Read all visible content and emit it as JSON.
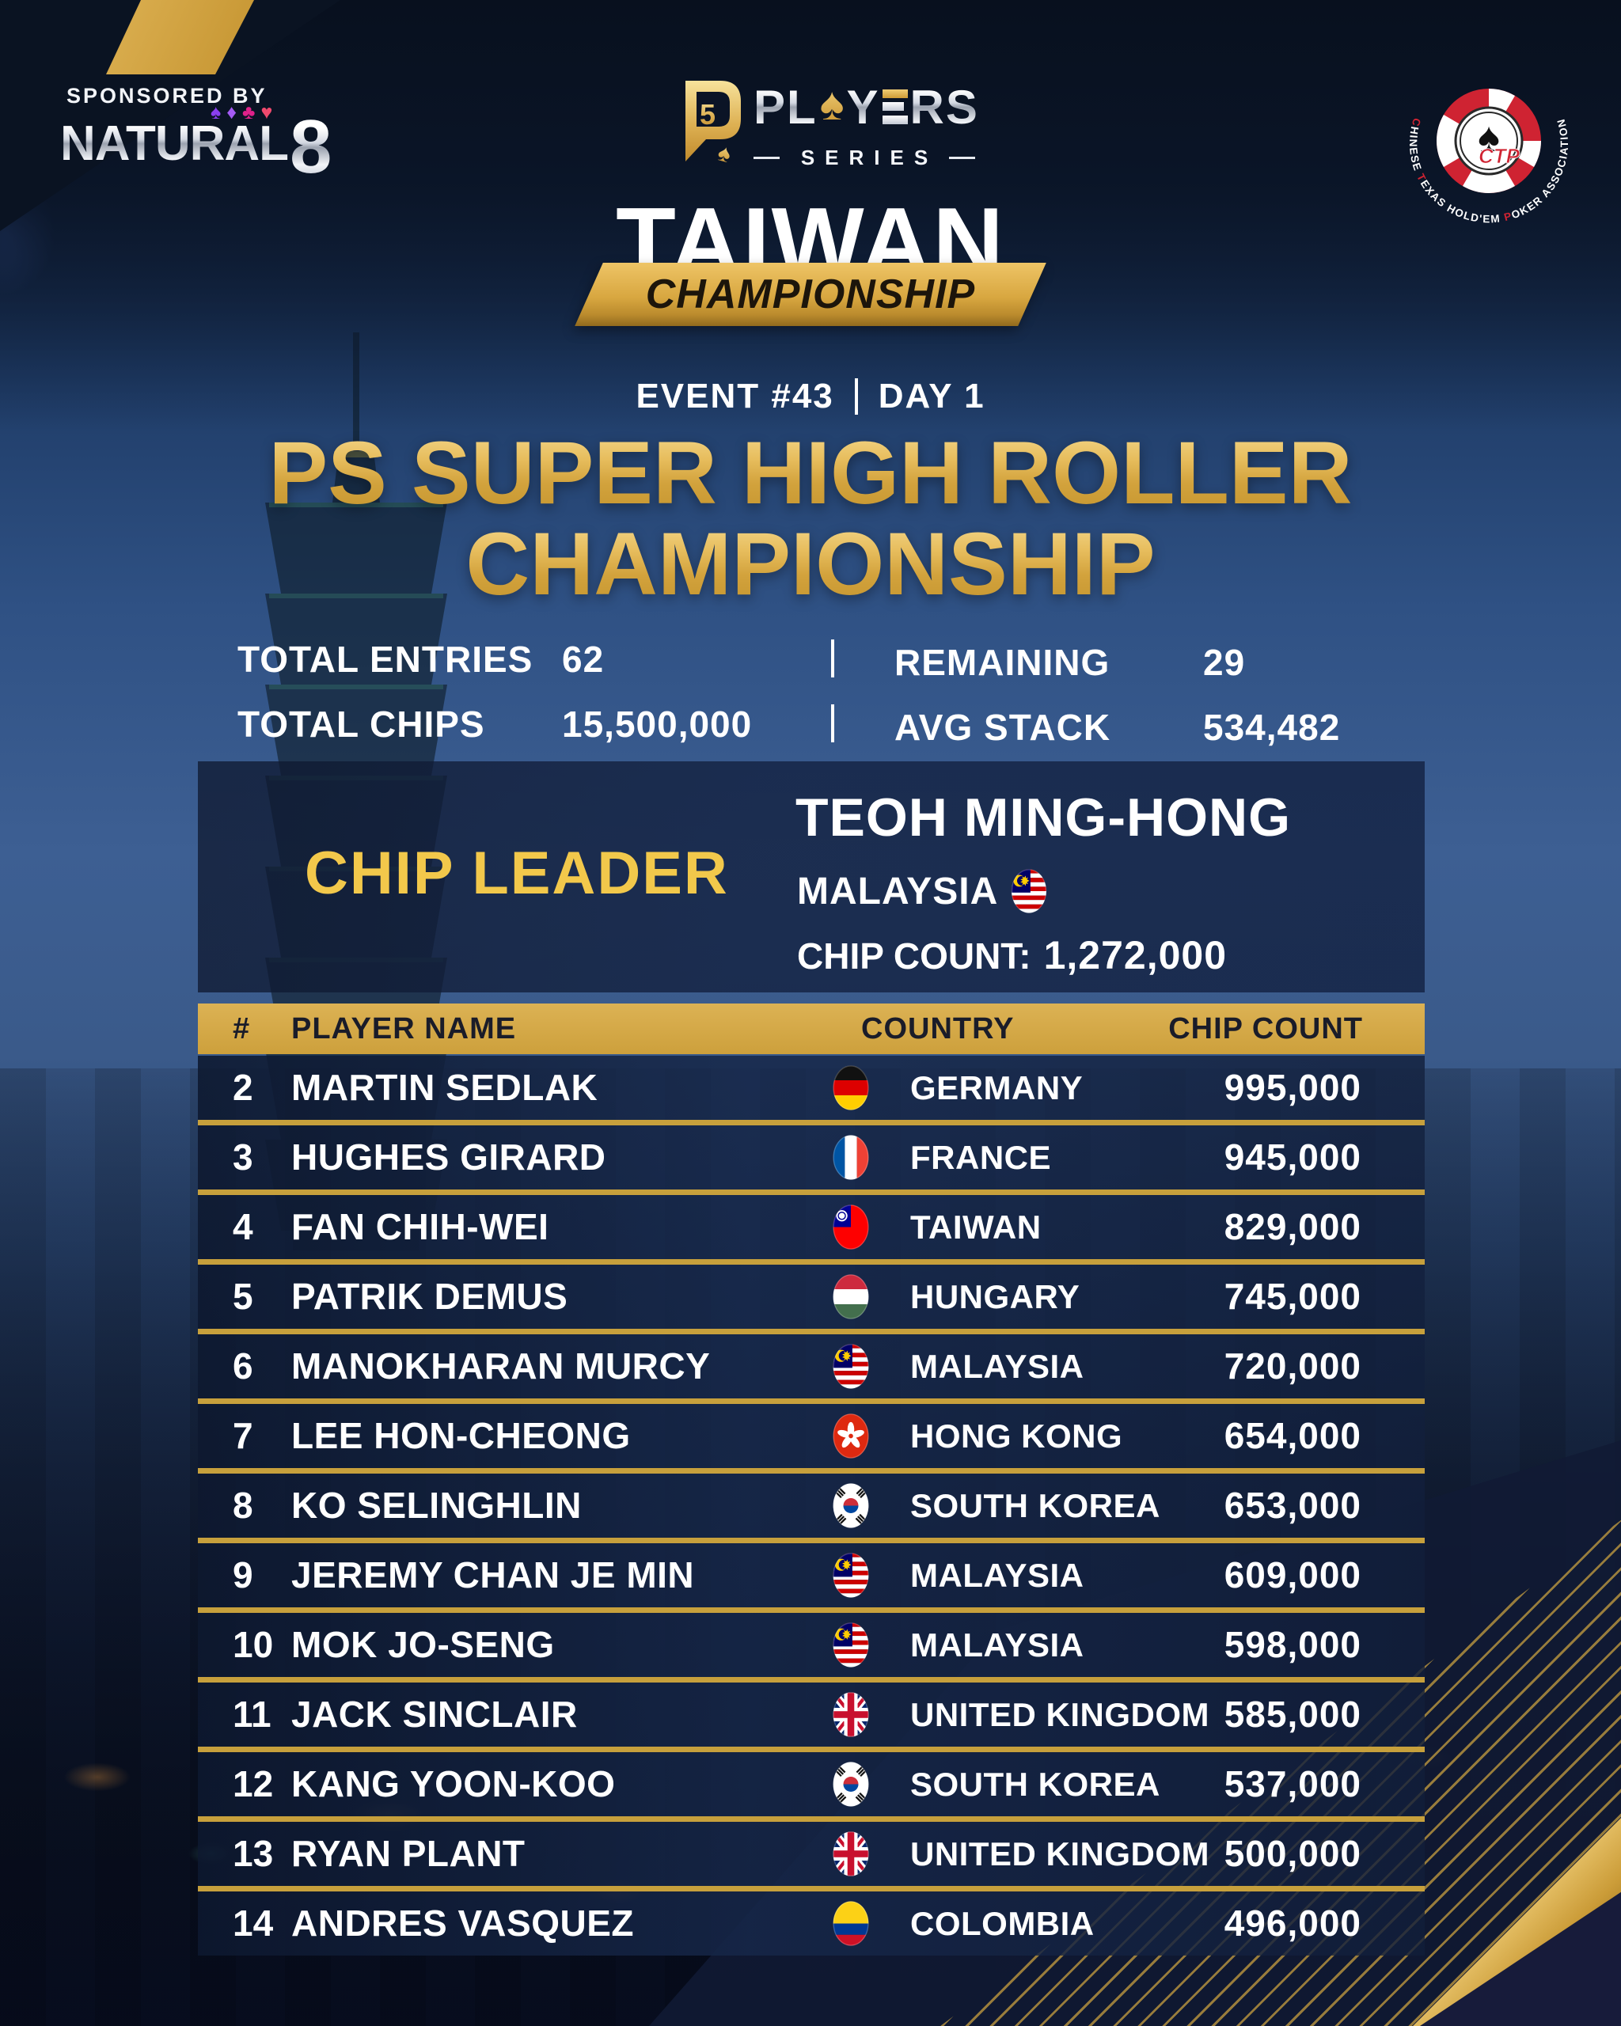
{
  "sponsor": {
    "label": "SPONSORED BY",
    "name_word": "NATURAL",
    "name_eight": "8",
    "suits": [
      "spade",
      "diamond",
      "club",
      "heart"
    ]
  },
  "brand": {
    "monogram": "PS",
    "players_pl": "PL",
    "players_spade": "♠",
    "players_yers_y": "Y",
    "players_yers_rs": "RS",
    "series": "SERIES",
    "location": "TAIWAN",
    "banner": "CHAMPIONSHIP"
  },
  "association": {
    "abbr": "CTP",
    "ring_text": "CHINESE TEXAS HOLD'EM POKER ASSOCIATION",
    "spade_icon": "♠"
  },
  "event": {
    "name": "EVENT #43",
    "day": "DAY 1",
    "title_line1": "PS SUPER HIGH ROLLER",
    "title_line2": "CHAMPIONSHIP"
  },
  "stats": {
    "total_entries_label": "TOTAL ENTRIES",
    "total_entries": "62",
    "total_chips_label": "TOTAL CHIPS",
    "total_chips": "15,500,000",
    "remaining_label": "REMAINING",
    "remaining": "29",
    "avg_stack_label": "AVG STACK",
    "avg_stack": "534,482"
  },
  "chip_leader": {
    "heading": "CHIP LEADER",
    "name": "TEOH MING-HONG",
    "country": "MALAYSIA",
    "flag": "malaysia",
    "chip_count_label": "CHIP COUNT:",
    "chip_count": "1,272,000"
  },
  "table": {
    "headers": {
      "rank": "#",
      "player": "PLAYER NAME",
      "country": "COUNTRY",
      "chips": "CHIP COUNT"
    },
    "rows": [
      {
        "rank": "2",
        "name": "MARTIN SEDLAK",
        "flag": "germany",
        "country": "GERMANY",
        "chips": "995,000"
      },
      {
        "rank": "3",
        "name": "HUGHES GIRARD",
        "flag": "france",
        "country": "FRANCE",
        "chips": "945,000"
      },
      {
        "rank": "4",
        "name": "FAN CHIH-WEI",
        "flag": "taiwan",
        "country": "TAIWAN",
        "chips": "829,000"
      },
      {
        "rank": "5",
        "name": "PATRIK DEMUS",
        "flag": "hungary",
        "country": "HUNGARY",
        "chips": "745,000"
      },
      {
        "rank": "6",
        "name": "MANOKHARAN MURCY",
        "flag": "malaysia",
        "country": "MALAYSIA",
        "chips": "720,000"
      },
      {
        "rank": "7",
        "name": "LEE HON-CHEONG",
        "flag": "hongkong",
        "country": "HONG KONG",
        "chips": "654,000"
      },
      {
        "rank": "8",
        "name": "KO SELINGHLIN",
        "flag": "southkorea",
        "country": "SOUTH KOREA",
        "chips": "653,000"
      },
      {
        "rank": "9",
        "name": "JEREMY CHAN JE MIN",
        "flag": "malaysia",
        "country": "MALAYSIA",
        "chips": "609,000"
      },
      {
        "rank": "10",
        "name": "MOK JO-SENG",
        "flag": "malaysia",
        "country": "MALAYSIA",
        "chips": "598,000"
      },
      {
        "rank": "11",
        "name": "JACK SINCLAIR",
        "flag": "uk",
        "country": "UNITED KINGDOM",
        "chips": "585,000"
      },
      {
        "rank": "12",
        "name": "KANG YOON-KOO",
        "flag": "southkorea",
        "country": "SOUTH KOREA",
        "chips": "537,000"
      },
      {
        "rank": "13",
        "name": "RYAN PLANT",
        "flag": "uk",
        "country": "UNITED KINGDOM",
        "chips": "500,000"
      },
      {
        "rank": "14",
        "name": "ANDRES VASQUEZ",
        "flag": "colombia",
        "country": "COLOMBIA",
        "chips": "496,000"
      }
    ]
  },
  "colors": {
    "gold": "#c7a03c",
    "gold_light": "#f2c84b",
    "header_text": "#1a1c29",
    "ctp_red": "#cf2332",
    "suit_spade": "#8a3ff0",
    "suit_diamond": "#a55bf5",
    "suit_club": "#e0218a",
    "suit_heart": "#f04a6e"
  }
}
